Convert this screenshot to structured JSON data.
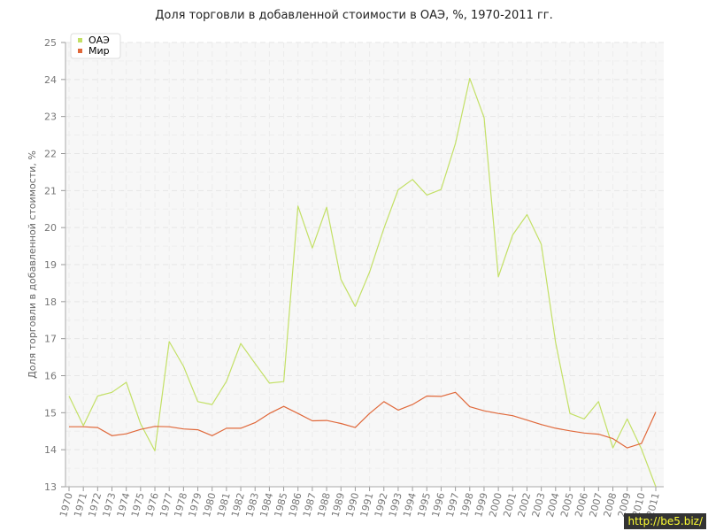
{
  "chart_data": {
    "type": "line",
    "title": "Доля торговли в добавленной стоимости в ОАЭ, %, 1970-2011 гг.",
    "xlabel": "",
    "ylabel": "Доля торговли в добавленной стоимости, %",
    "ylim": [
      13,
      25
    ],
    "yticks": [
      13,
      14,
      15,
      16,
      17,
      18,
      19,
      20,
      21,
      22,
      23,
      24,
      25
    ],
    "grid": true,
    "legend_position": "top-left",
    "x": [
      "1970",
      "1971",
      "1972",
      "1973",
      "1974",
      "1975",
      "1976",
      "1977",
      "1978",
      "1979",
      "1980",
      "1981",
      "1982",
      "1983",
      "1984",
      "1985",
      "1986",
      "1987",
      "1988",
      "1989",
      "1990",
      "1991",
      "1992",
      "1993",
      "1994",
      "1995",
      "1996",
      "1997",
      "1998",
      "1999",
      "2000",
      "2001",
      "2002",
      "2003",
      "2004",
      "2005",
      "2006",
      "2007",
      "2008",
      "2009",
      "2010",
      "2011"
    ],
    "series": [
      {
        "name": "ОАЭ",
        "color": "#c3e066",
        "values": [
          15.45,
          14.65,
          15.45,
          15.55,
          15.82,
          14.7,
          13.97,
          16.92,
          16.25,
          15.3,
          15.22,
          15.85,
          16.87,
          16.33,
          15.8,
          15.84,
          20.58,
          19.45,
          20.55,
          18.6,
          17.87,
          18.8,
          19.98,
          21.02,
          21.3,
          20.88,
          21.03,
          22.27,
          24.03,
          22.97,
          18.67,
          19.8,
          20.35,
          19.55,
          16.9,
          14.98,
          14.83,
          15.3,
          14.05,
          14.83,
          14.02,
          13.0
        ]
      },
      {
        "name": "Мир",
        "color": "#e0683a",
        "values": [
          14.62,
          14.62,
          14.6,
          14.38,
          14.43,
          14.55,
          14.63,
          14.62,
          14.56,
          14.54,
          14.38,
          14.58,
          14.58,
          14.73,
          14.98,
          15.17,
          14.98,
          14.78,
          14.79,
          14.71,
          14.6,
          14.98,
          15.3,
          15.07,
          15.22,
          15.45,
          15.44,
          15.55,
          15.16,
          15.05,
          14.98,
          14.92,
          14.8,
          14.68,
          14.58,
          14.51,
          14.45,
          14.42,
          14.3,
          14.05,
          14.17,
          15.02
        ]
      }
    ]
  },
  "watermark": "http://be5.biz/"
}
